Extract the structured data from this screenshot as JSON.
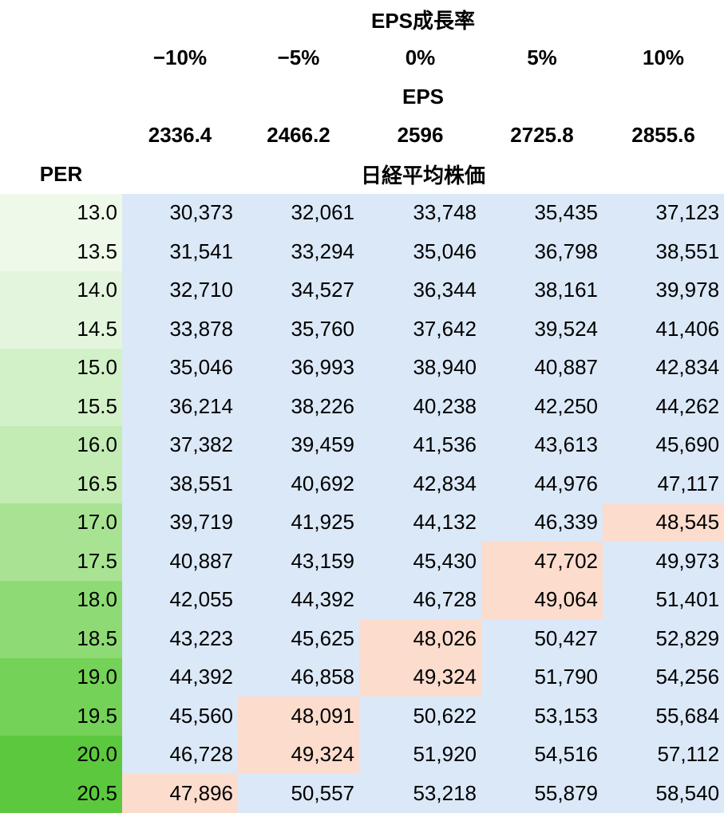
{
  "chart_data": {
    "type": "table",
    "title": "EPS成長率",
    "growth_rates": [
      "−10%",
      "−5%",
      "0%",
      "5%",
      "10%"
    ],
    "eps_label": "EPS",
    "eps_values": [
      "2336.4",
      "2466.2",
      "2596",
      "2725.8",
      "2855.6"
    ],
    "row_header_label": "PER",
    "value_label": "日経平均株価",
    "per_values": [
      "13.0",
      "13.5",
      "14.0",
      "14.5",
      "15.0",
      "15.5",
      "16.0",
      "16.5",
      "17.0",
      "17.5",
      "18.0",
      "18.5",
      "19.0",
      "19.5",
      "20.0",
      "20.5"
    ],
    "values": [
      [
        "30,373",
        "32,061",
        "33,748",
        "35,435",
        "37,123"
      ],
      [
        "31,541",
        "33,294",
        "35,046",
        "36,798",
        "38,551"
      ],
      [
        "32,710",
        "34,527",
        "36,344",
        "38,161",
        "39,978"
      ],
      [
        "33,878",
        "35,760",
        "37,642",
        "39,524",
        "41,406"
      ],
      [
        "35,046",
        "36,993",
        "38,940",
        "40,887",
        "42,834"
      ],
      [
        "36,214",
        "38,226",
        "40,238",
        "42,250",
        "44,262"
      ],
      [
        "37,382",
        "39,459",
        "41,536",
        "43,613",
        "45,690"
      ],
      [
        "38,551",
        "40,692",
        "42,834",
        "44,976",
        "47,117"
      ],
      [
        "39,719",
        "41,925",
        "44,132",
        "46,339",
        "48,545"
      ],
      [
        "40,887",
        "43,159",
        "45,430",
        "47,702",
        "49,973"
      ],
      [
        "42,055",
        "44,392",
        "46,728",
        "49,064",
        "51,401"
      ],
      [
        "43,223",
        "45,625",
        "48,026",
        "50,427",
        "52,829"
      ],
      [
        "44,392",
        "46,858",
        "49,324",
        "51,790",
        "54,256"
      ],
      [
        "45,560",
        "48,091",
        "50,622",
        "53,153",
        "55,684"
      ],
      [
        "46,728",
        "49,324",
        "51,920",
        "54,516",
        "57,112"
      ],
      [
        "47,896",
        "50,557",
        "53,218",
        "55,879",
        "58,540"
      ]
    ],
    "highlighted_cells": [
      [
        8,
        4
      ],
      [
        9,
        3
      ],
      [
        10,
        3
      ],
      [
        11,
        2
      ],
      [
        12,
        2
      ],
      [
        13,
        1
      ],
      [
        14,
        1
      ],
      [
        15,
        0
      ]
    ]
  },
  "colors": {
    "cell_background": "#dbe8f7",
    "highlight_background": "#fbdccd",
    "per_gradient": [
      "#eef9ea",
      "#e3f6dd",
      "#d2f1c8",
      "#c2ecb4",
      "#a8e394",
      "#8edb75",
      "#73d257",
      "#5cc83e",
      "#4aa630"
    ],
    "header_background": "#ffffff",
    "text": "#000000"
  }
}
